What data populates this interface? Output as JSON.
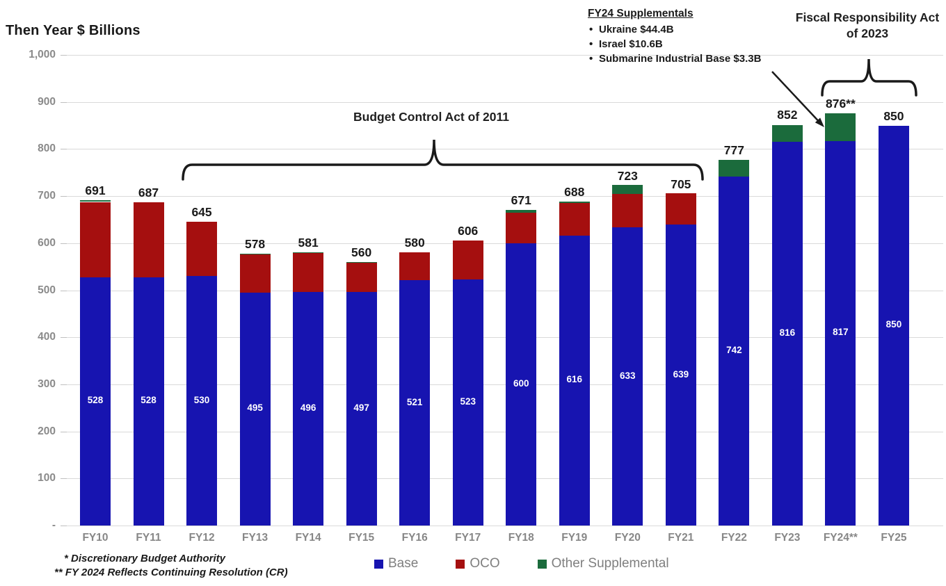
{
  "title": "Then Year $ Billions",
  "colors": {
    "base": "#1714B0",
    "oco": "#A50F0F",
    "other": "#1B6B3C",
    "grid": "#D9D9D9",
    "axis_text": "#8A8A8A",
    "legend_text": "#7F7F7F"
  },
  "chart_data": {
    "type": "bar",
    "stacked": true,
    "title": "Then Year $ Billions",
    "categories": [
      "FY10",
      "FY11",
      "FY12",
      "FY13",
      "FY14",
      "FY15",
      "FY16",
      "FY17",
      "FY18",
      "FY19",
      "FY20",
      "FY21",
      "FY22",
      "FY23",
      "FY24**",
      "FY25"
    ],
    "series": [
      {
        "name": "Base",
        "color_key": "base",
        "values": [
          528,
          528,
          530,
          495,
          496,
          497,
          521,
          523,
          600,
          616,
          633,
          639,
          742,
          816,
          817,
          850
        ]
      },
      {
        "name": "OCO",
        "color_key": "oco",
        "values": [
          160,
          159,
          115,
          81,
          83,
          62,
          59,
          83,
          65,
          69,
          71,
          66,
          0,
          0,
          0,
          0
        ]
      },
      {
        "name": "Other Supplemental",
        "color_key": "other",
        "values": [
          3,
          0,
          0,
          2,
          2,
          1,
          0,
          0,
          6,
          3,
          19,
          0,
          35,
          36,
          59,
          0
        ]
      }
    ],
    "totals": [
      691,
      687,
      645,
      578,
      581,
      560,
      580,
      606,
      671,
      688,
      723,
      705,
      777,
      852,
      876,
      850
    ],
    "total_labels": [
      "691",
      "687",
      "645",
      "578",
      "581",
      "560",
      "580",
      "606",
      "671",
      "688",
      "723",
      "705",
      "777",
      "852",
      "876**",
      "850"
    ],
    "bar_value_labels": [
      "528",
      "528",
      "530",
      "495",
      "496",
      "497",
      "521",
      "523",
      "600",
      "616",
      "633",
      "639",
      "742",
      "816",
      "817",
      "850"
    ],
    "y_ticks": [
      {
        "label": "1,000",
        "value": 1000
      },
      {
        "label": "900",
        "value": 900
      },
      {
        "label": "800",
        "value": 800
      },
      {
        "label": "700",
        "value": 700
      },
      {
        "label": "600",
        "value": 600
      },
      {
        "label": "500",
        "value": 500
      },
      {
        "label": "400",
        "value": 400
      },
      {
        "label": "300",
        "value": 300
      },
      {
        "label": "200",
        "value": 200
      },
      {
        "label": "100",
        "value": 100
      },
      {
        "label": "-",
        "value": 0
      }
    ],
    "ylim": [
      0,
      1000
    ],
    "grid": true,
    "legend_position": "bottom"
  },
  "annotations": {
    "bca": {
      "text": "Budget Control Act of 2011",
      "span": "FY12–FY21"
    },
    "supplementals": {
      "heading": "FY24 Supplementals",
      "items": [
        "Ukraine $44.4B",
        "Israel $10.6B",
        "Submarine Industrial Base $3.3B"
      ]
    },
    "fra": {
      "line1": "Fiscal Responsibility Act",
      "line2": "of 2023",
      "span": "FY24–FY25"
    }
  },
  "legend": [
    {
      "label": "Base",
      "color_key": "base"
    },
    {
      "label": "OCO",
      "color_key": "oco"
    },
    {
      "label": "Other Supplemental",
      "color_key": "other"
    }
  ],
  "footnotes": [
    "* Discretionary Budget Authority",
    "** FY 2024 Reflects Continuing Resolution (CR)"
  ]
}
